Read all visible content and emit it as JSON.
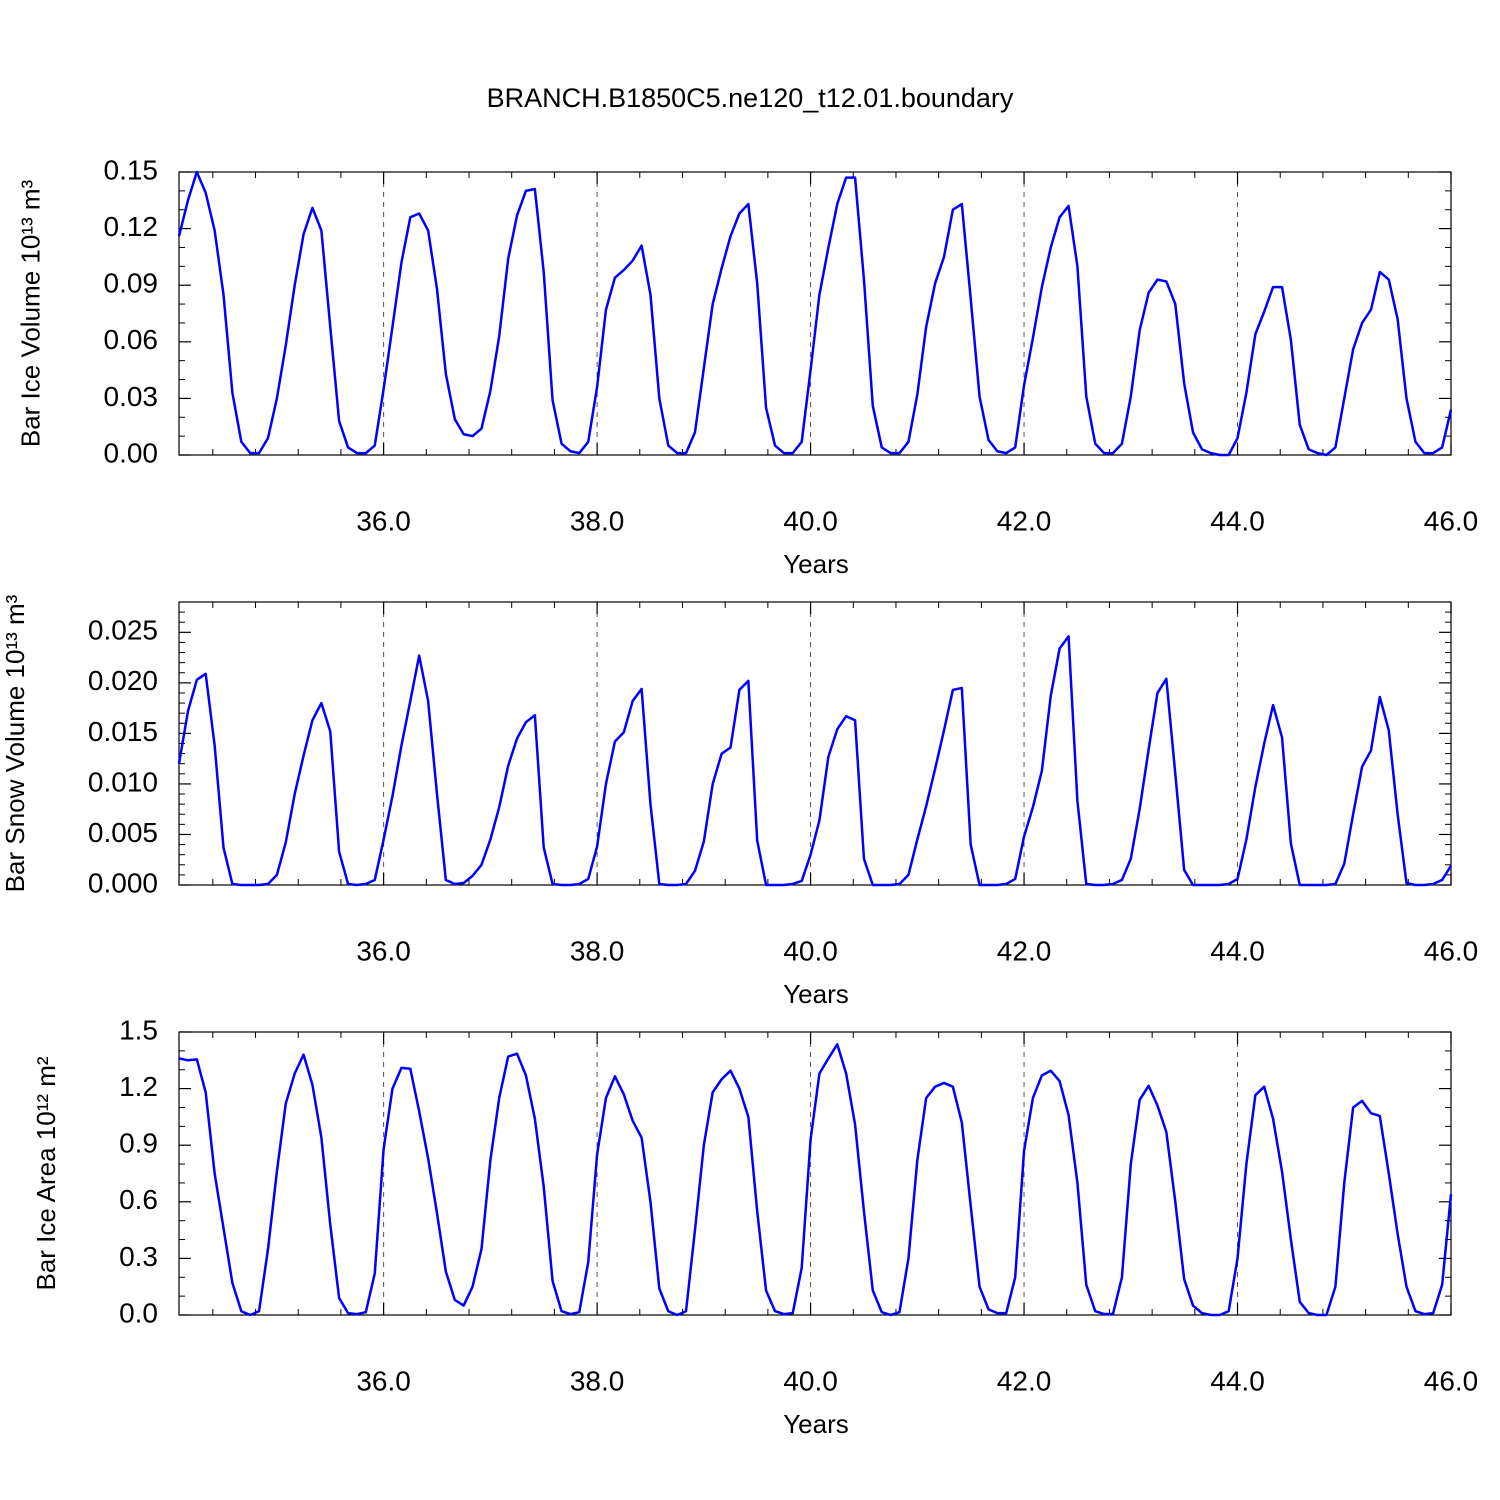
{
  "chart_data": [
    {
      "type": "line",
      "title": "BRANCH.B1850C5.ne120_t12.01.boundary",
      "xlabel": "Years",
      "ylabel": "Bar Ice Volume 10¹³ m³",
      "color": "#0000ff",
      "xlim": [
        34.083,
        46
      ],
      "ylim": [
        0,
        0.15
      ],
      "xticks": [
        {
          "value": 36,
          "label": "36.0"
        },
        {
          "value": 38,
          "label": "38.0"
        },
        {
          "value": 40,
          "label": "40.0"
        },
        {
          "value": 42,
          "label": "42.0"
        },
        {
          "value": 44,
          "label": "44.0"
        },
        {
          "value": 46,
          "label": "46.0"
        }
      ],
      "yticks": [
        {
          "value": 0,
          "label": "0.00"
        },
        0.03,
        0.06,
        0.09,
        0.12,
        0.15
      ],
      "x": [
        34.083,
        34.167,
        34.25,
        34.333,
        34.417,
        34.5,
        34.583,
        34.667,
        34.75,
        34.833,
        34.917,
        35,
        35.083,
        35.167,
        35.25,
        35.333,
        35.417,
        35.5,
        35.583,
        35.667,
        35.75,
        35.833,
        35.917,
        36,
        36.083,
        36.167,
        36.25,
        36.333,
        36.417,
        36.5,
        36.583,
        36.667,
        36.75,
        36.833,
        36.917,
        37,
        37.083,
        37.167,
        37.25,
        37.333,
        37.417,
        37.5,
        37.583,
        37.667,
        37.75,
        37.833,
        37.917,
        38,
        38.083,
        38.167,
        38.25,
        38.333,
        38.417,
        38.5,
        38.583,
        38.667,
        38.75,
        38.833,
        38.917,
        39,
        39.083,
        39.167,
        39.25,
        39.333,
        39.417,
        39.5,
        39.583,
        39.667,
        39.75,
        39.833,
        39.917,
        40,
        40.083,
        40.167,
        40.25,
        40.333,
        40.417,
        40.5,
        40.583,
        40.667,
        40.75,
        40.833,
        40.917,
        41,
        41.083,
        41.167,
        41.25,
        41.333,
        41.417,
        41.5,
        41.583,
        41.667,
        41.75,
        41.833,
        41.917,
        42,
        42.083,
        42.167,
        42.25,
        42.333,
        42.417,
        42.5,
        42.583,
        42.667,
        42.75,
        42.833,
        42.917,
        43,
        43.083,
        43.167,
        43.25,
        43.333,
        43.417,
        43.5,
        43.583,
        43.667,
        43.75,
        43.833,
        43.917,
        44,
        44.083,
        44.167,
        44.25,
        44.333,
        44.417,
        44.5,
        44.583,
        44.667,
        44.75,
        44.833,
        44.917,
        45,
        45.083,
        45.167,
        45.25,
        45.333,
        45.417,
        45.5,
        45.583,
        45.667,
        45.75,
        45.833,
        45.917,
        46
      ],
      "values": [
        0.116,
        0.135,
        0.15,
        0.139,
        0.119,
        0.085,
        0.033,
        0.007,
        0.001,
        0.001,
        0.009,
        0.03,
        0.058,
        0.09,
        0.117,
        0.131,
        0.119,
        0.068,
        0.018,
        0.004,
        0.001,
        0.001,
        0.005,
        0.035,
        0.068,
        0.102,
        0.126,
        0.128,
        0.119,
        0.088,
        0.043,
        0.019,
        0.011,
        0.01,
        0.014,
        0.034,
        0.063,
        0.104,
        0.127,
        0.14,
        0.141,
        0.097,
        0.029,
        0.006,
        0.002,
        0.001,
        0.007,
        0.036,
        0.077,
        0.094,
        0.098,
        0.103,
        0.111,
        0.085,
        0.03,
        0.005,
        0.001,
        0.001,
        0.012,
        0.046,
        0.08,
        0.099,
        0.116,
        0.128,
        0.133,
        0.091,
        0.025,
        0.005,
        0.001,
        0.001,
        0.007,
        0.045,
        0.085,
        0.11,
        0.133,
        0.147,
        0.147,
        0.093,
        0.026,
        0.004,
        0.001,
        0.001,
        0.007,
        0.032,
        0.068,
        0.091,
        0.105,
        0.13,
        0.133,
        0.083,
        0.031,
        0.008,
        0.002,
        0.001,
        0.004,
        0.037,
        0.062,
        0.089,
        0.11,
        0.126,
        0.132,
        0.1,
        0.031,
        0.006,
        0.001,
        0.001,
        0.006,
        0.031,
        0.066,
        0.086,
        0.093,
        0.092,
        0.08,
        0.038,
        0.012,
        0.003,
        0.001,
        0,
        0,
        0.009,
        0.033,
        0.064,
        0.076,
        0.089,
        0.089,
        0.061,
        0.016,
        0.003,
        0.001,
        0,
        0.004,
        0.03,
        0.056,
        0.07,
        0.077,
        0.097,
        0.093,
        0.072,
        0.03,
        0.007,
        0.001,
        0.001,
        0.004,
        0.024
      ]
    },
    {
      "type": "line",
      "xlabel": "Years",
      "ylabel": "Bar Snow Volume 10¹³ m³",
      "color": "#0000ff",
      "xlim": [
        34.083,
        46
      ],
      "ylim": [
        0,
        0.028
      ],
      "xticks": [
        {
          "value": 36,
          "label": "36.0"
        },
        {
          "value": 38,
          "label": "38.0"
        },
        {
          "value": 40,
          "label": "40.0"
        },
        {
          "value": 42,
          "label": "42.0"
        },
        {
          "value": 44,
          "label": "44.0"
        },
        {
          "value": 46,
          "label": "46.0"
        }
      ],
      "yticks": [
        {
          "value": 0,
          "label": "0.000"
        },
        0.005,
        {
          "value": 0.01,
          "label": "0.010"
        },
        0.015,
        {
          "value": 0.02,
          "label": "0.020"
        },
        0.025
      ],
      "x": [
        34.083,
        34.167,
        34.25,
        34.333,
        34.417,
        34.5,
        34.583,
        34.667,
        34.75,
        34.833,
        34.917,
        35,
        35.083,
        35.167,
        35.25,
        35.333,
        35.417,
        35.5,
        35.583,
        35.667,
        35.75,
        35.833,
        35.917,
        36,
        36.083,
        36.167,
        36.25,
        36.333,
        36.417,
        36.5,
        36.583,
        36.667,
        36.75,
        36.833,
        36.917,
        37,
        37.083,
        37.167,
        37.25,
        37.333,
        37.417,
        37.5,
        37.583,
        37.667,
        37.75,
        37.833,
        37.917,
        38,
        38.083,
        38.167,
        38.25,
        38.333,
        38.417,
        38.5,
        38.583,
        38.667,
        38.75,
        38.833,
        38.917,
        39,
        39.083,
        39.167,
        39.25,
        39.333,
        39.417,
        39.5,
        39.583,
        39.667,
        39.75,
        39.833,
        39.917,
        40,
        40.083,
        40.167,
        40.25,
        40.333,
        40.417,
        40.5,
        40.583,
        40.667,
        40.75,
        40.833,
        40.917,
        41,
        41.083,
        41.167,
        41.25,
        41.333,
        41.417,
        41.5,
        41.583,
        41.667,
        41.75,
        41.833,
        41.917,
        42,
        42.083,
        42.167,
        42.25,
        42.333,
        42.417,
        42.5,
        42.583,
        42.667,
        42.75,
        42.833,
        42.917,
        43,
        43.083,
        43.167,
        43.25,
        43.333,
        43.417,
        43.5,
        43.583,
        43.667,
        43.75,
        43.833,
        43.917,
        44,
        44.083,
        44.167,
        44.25,
        44.333,
        44.417,
        44.5,
        44.583,
        44.667,
        44.75,
        44.833,
        44.917,
        45,
        45.083,
        45.167,
        45.25,
        45.333,
        45.417,
        45.5,
        45.583,
        45.667,
        45.75,
        45.833,
        45.917,
        46
      ],
      "values": [
        0.012,
        0.0172,
        0.0203,
        0.0209,
        0.0138,
        0.0037,
        0.0001,
        0,
        0,
        0,
        0.0001,
        0.001,
        0.0042,
        0.009,
        0.0128,
        0.0163,
        0.018,
        0.0152,
        0.0033,
        0.0001,
        0,
        0.0001,
        0.0005,
        0.0045,
        0.0088,
        0.0138,
        0.0182,
        0.0227,
        0.0182,
        0.009,
        0.0005,
        0.0001,
        0.0002,
        0.0009,
        0.002,
        0.0045,
        0.0077,
        0.0118,
        0.0145,
        0.0161,
        0.0168,
        0.0037,
        0.0001,
        0,
        0,
        0.0001,
        0.0006,
        0.0038,
        0.01,
        0.0142,
        0.0151,
        0.0182,
        0.0194,
        0.008,
        0.0001,
        0,
        0,
        0.0001,
        0.0014,
        0.0043,
        0.01,
        0.013,
        0.0136,
        0.0193,
        0.0202,
        0.0044,
        0,
        0,
        0,
        0.0001,
        0.0004,
        0.003,
        0.0064,
        0.0127,
        0.0154,
        0.0167,
        0.0163,
        0.0026,
        0,
        0,
        0,
        0.0001,
        0.001,
        0.0045,
        0.0078,
        0.0115,
        0.0153,
        0.0193,
        0.0195,
        0.004,
        0,
        0,
        0,
        0.0001,
        0.0006,
        0.0048,
        0.0077,
        0.0113,
        0.0187,
        0.0234,
        0.0246,
        0.0083,
        0.0001,
        0,
        0,
        0.0001,
        0.0005,
        0.0026,
        0.0075,
        0.0134,
        0.019,
        0.0204,
        0.011,
        0.0015,
        0,
        0,
        0,
        0,
        0.0001,
        0.0006,
        0.0045,
        0.0097,
        0.014,
        0.0178,
        0.0146,
        0.0041,
        0,
        0,
        0,
        0,
        0.0001,
        0.0021,
        0.007,
        0.0117,
        0.0133,
        0.0186,
        0.0153,
        0.007,
        0.0002,
        0,
        0,
        0.0001,
        0.0005,
        0.0019
      ]
    },
    {
      "type": "line",
      "xlabel": "Years",
      "ylabel": "Bar Ice Area 10¹² m²",
      "color": "#0000ff",
      "xlim": [
        34.083,
        46
      ],
      "ylim": [
        0,
        1.5
      ],
      "xticks": [
        {
          "value": 36,
          "label": "36.0"
        },
        {
          "value": 38,
          "label": "38.0"
        },
        {
          "value": 40,
          "label": "40.0"
        },
        {
          "value": 42,
          "label": "42.0"
        },
        {
          "value": 44,
          "label": "44.0"
        },
        {
          "value": 46,
          "label": "46.0"
        }
      ],
      "yticks": [
        {
          "value": 0,
          "label": "0.0"
        },
        0.3,
        0.6,
        0.9,
        1.2,
        1.5
      ],
      "x": [
        34.083,
        34.167,
        34.25,
        34.333,
        34.417,
        34.5,
        34.583,
        34.667,
        34.75,
        34.833,
        34.917,
        35,
        35.083,
        35.167,
        35.25,
        35.333,
        35.417,
        35.5,
        35.583,
        35.667,
        35.75,
        35.833,
        35.917,
        36,
        36.083,
        36.167,
        36.25,
        36.333,
        36.417,
        36.5,
        36.583,
        36.667,
        36.75,
        36.833,
        36.917,
        37,
        37.083,
        37.167,
        37.25,
        37.333,
        37.417,
        37.5,
        37.583,
        37.667,
        37.75,
        37.833,
        37.917,
        38,
        38.083,
        38.167,
        38.25,
        38.333,
        38.417,
        38.5,
        38.583,
        38.667,
        38.75,
        38.833,
        38.917,
        39,
        39.083,
        39.167,
        39.25,
        39.333,
        39.417,
        39.5,
        39.583,
        39.667,
        39.75,
        39.833,
        39.917,
        40,
        40.083,
        40.167,
        40.25,
        40.333,
        40.417,
        40.5,
        40.583,
        40.667,
        40.75,
        40.833,
        40.917,
        41,
        41.083,
        41.167,
        41.25,
        41.333,
        41.417,
        41.5,
        41.583,
        41.667,
        41.75,
        41.833,
        41.917,
        42,
        42.083,
        42.167,
        42.25,
        42.333,
        42.417,
        42.5,
        42.583,
        42.667,
        42.75,
        42.833,
        42.917,
        43,
        43.083,
        43.167,
        43.25,
        43.333,
        43.417,
        43.5,
        43.583,
        43.667,
        43.75,
        43.833,
        43.917,
        44,
        44.083,
        44.167,
        44.25,
        44.333,
        44.417,
        44.5,
        44.583,
        44.667,
        44.75,
        44.833,
        44.917,
        45,
        45.083,
        45.167,
        45.25,
        45.333,
        45.417,
        45.5,
        45.583,
        45.667,
        45.75,
        45.833,
        45.917,
        46
      ],
      "values": [
        1.36,
        1.35,
        1.355,
        1.18,
        0.75,
        0.46,
        0.17,
        0.02,
        0,
        0.02,
        0.35,
        0.76,
        1.12,
        1.28,
        1.38,
        1.22,
        0.94,
        0.48,
        0.09,
        0.01,
        0.005,
        0.015,
        0.22,
        0.88,
        1.2,
        1.31,
        1.305,
        1.08,
        0.83,
        0.54,
        0.23,
        0.08,
        0.05,
        0.15,
        0.35,
        0.82,
        1.15,
        1.37,
        1.385,
        1.27,
        1.04,
        0.68,
        0.18,
        0.02,
        0.005,
        0.015,
        0.28,
        0.85,
        1.15,
        1.265,
        1.17,
        1.03,
        0.94,
        0.6,
        0.14,
        0.02,
        0,
        0.02,
        0.45,
        0.9,
        1.18,
        1.25,
        1.295,
        1.2,
        1.05,
        0.55,
        0.13,
        0.02,
        0.005,
        0.01,
        0.25,
        0.93,
        1.28,
        1.36,
        1.435,
        1.28,
        1.01,
        0.55,
        0.13,
        0.015,
        0,
        0.015,
        0.3,
        0.82,
        1.15,
        1.21,
        1.23,
        1.21,
        1.02,
        0.58,
        0.15,
        0.03,
        0.01,
        0.01,
        0.2,
        0.87,
        1.15,
        1.27,
        1.295,
        1.24,
        1.06,
        0.7,
        0.16,
        0.02,
        0.005,
        0.005,
        0.2,
        0.8,
        1.14,
        1.215,
        1.11,
        0.97,
        0.6,
        0.19,
        0.05,
        0.01,
        0,
        0,
        0.02,
        0.3,
        0.8,
        1.165,
        1.21,
        1.04,
        0.76,
        0.4,
        0.07,
        0.01,
        0,
        0,
        0.15,
        0.7,
        1.1,
        1.135,
        1.07,
        1.055,
        0.75,
        0.43,
        0.15,
        0.02,
        0.005,
        0.01,
        0.16,
        0.64
      ]
    }
  ]
}
